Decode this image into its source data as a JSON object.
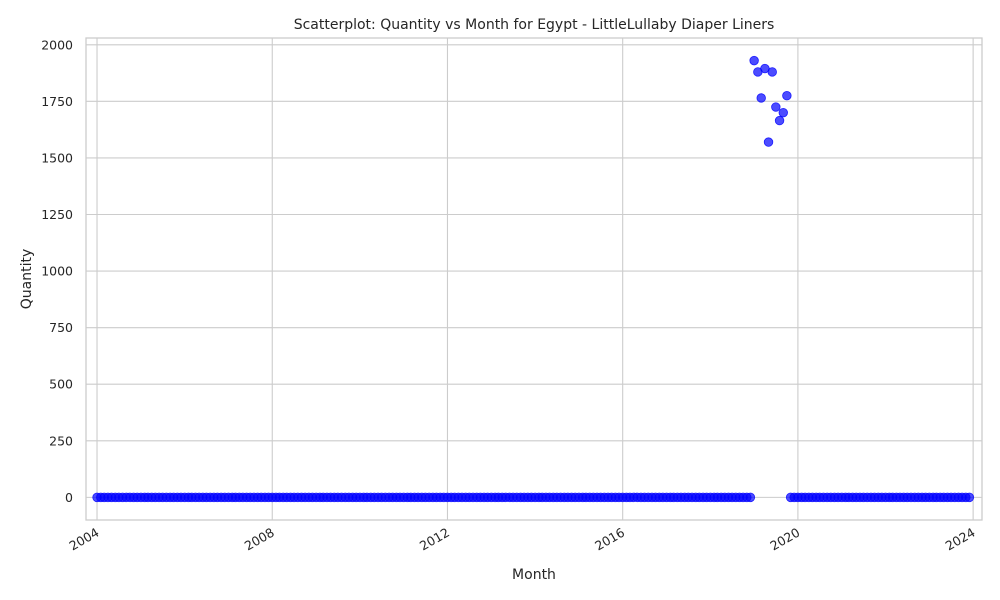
{
  "chart_data": {
    "type": "scatter",
    "title": "Scatterplot: Quantity vs Month for Egypt - LittleLullaby Diaper Liners",
    "xlabel": "Month",
    "ylabel": "Quantity",
    "x_range": [
      "2003-10-01",
      "2024-03-15"
    ],
    "ylim": [
      -100,
      2030
    ],
    "x_ticks": [
      "2004",
      "2008",
      "2012",
      "2016",
      "2020",
      "2024"
    ],
    "y_ticks": [
      0,
      250,
      500,
      750,
      1000,
      1250,
      1500,
      1750,
      2000
    ],
    "grid": true,
    "legend": "none",
    "color": "#0000ff",
    "zero_ranges": [
      {
        "from": "2004-01",
        "to": "2018-12",
        "value": 0
      },
      {
        "from": "2019-11",
        "to": "2023-12",
        "value": 0
      }
    ],
    "points": [
      {
        "x": "2019-01",
        "y": 1930
      },
      {
        "x": "2019-02",
        "y": 1880
      },
      {
        "x": "2019-03",
        "y": 1765
      },
      {
        "x": "2019-04",
        "y": 1895
      },
      {
        "x": "2019-05",
        "y": 1570
      },
      {
        "x": "2019-06",
        "y": 1880
      },
      {
        "x": "2019-07",
        "y": 1725
      },
      {
        "x": "2019-08",
        "y": 1665
      },
      {
        "x": "2019-09",
        "y": 1700
      },
      {
        "x": "2019-10",
        "y": 1775
      }
    ]
  }
}
